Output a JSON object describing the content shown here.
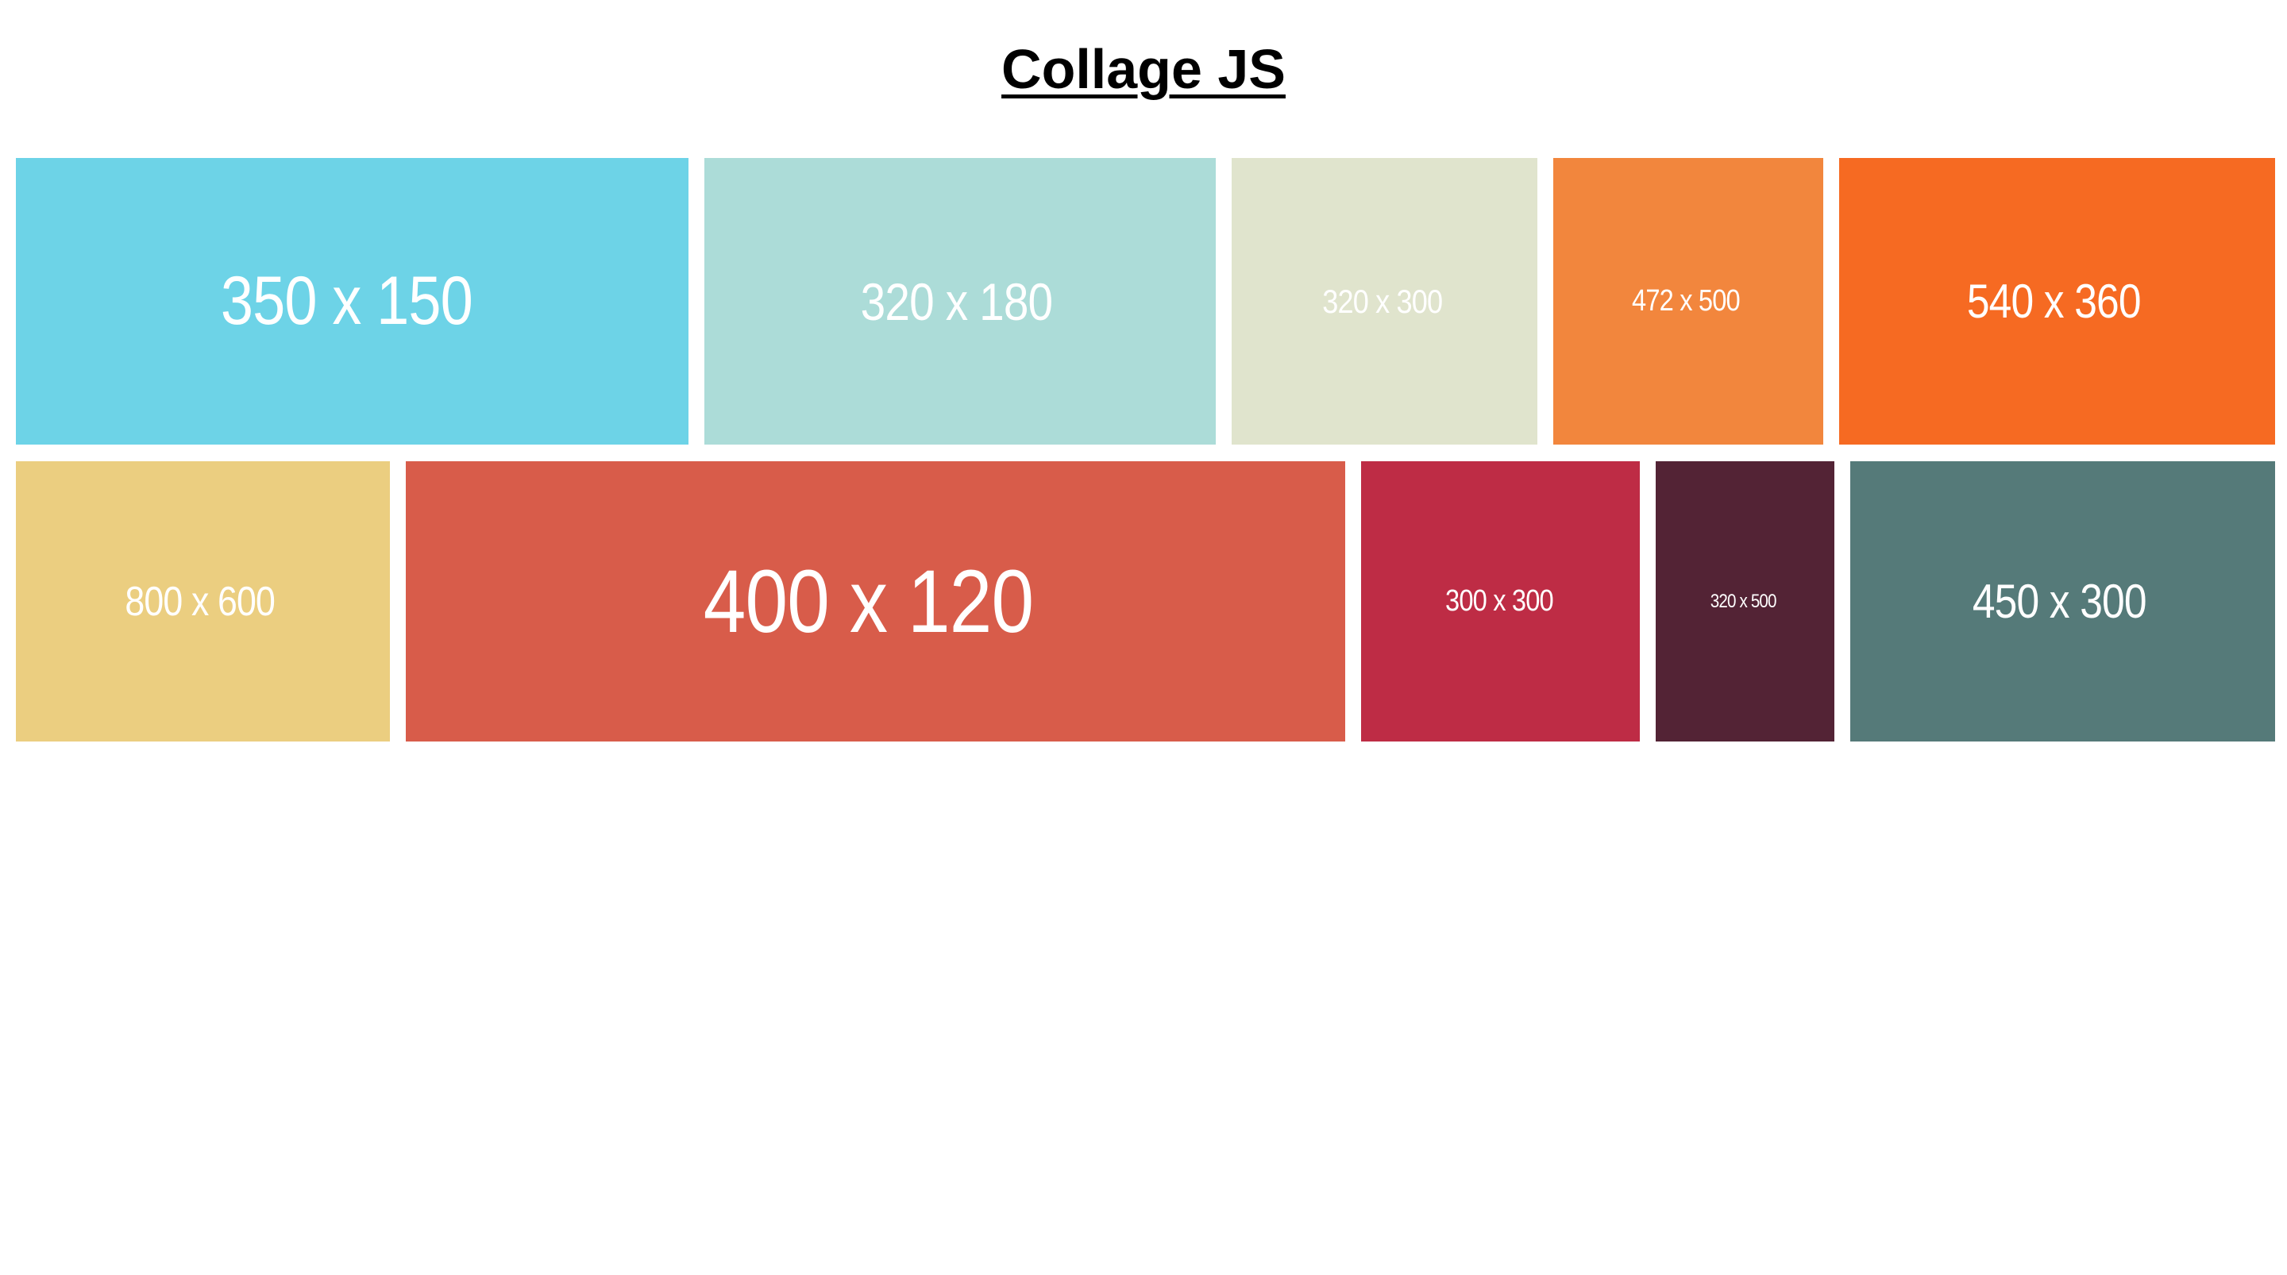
{
  "page": {
    "title": "Collage JS"
  },
  "collage": {
    "rows": [
      {
        "tiles": [
          {
            "label": "350 x 150",
            "color": "#6dd3e7"
          },
          {
            "label": "320 x 180",
            "color": "#acdcd8"
          },
          {
            "label": "320 x 300",
            "color": "#e0e4cd"
          },
          {
            "label": "472 x 500",
            "color": "#f2863d"
          },
          {
            "label": "540 x 360",
            "color": "#f66a22"
          }
        ]
      },
      {
        "tiles": [
          {
            "label": "800 x 600",
            "color": "#ebce80"
          },
          {
            "label": "400 x 120",
            "color": "#d85c4a"
          },
          {
            "label": "300 x 300",
            "color": "#be2c45"
          },
          {
            "label": "320 x 500",
            "color": "#532335"
          },
          {
            "label": "450 x 300",
            "color": "#557a79"
          }
        ]
      }
    ]
  }
}
